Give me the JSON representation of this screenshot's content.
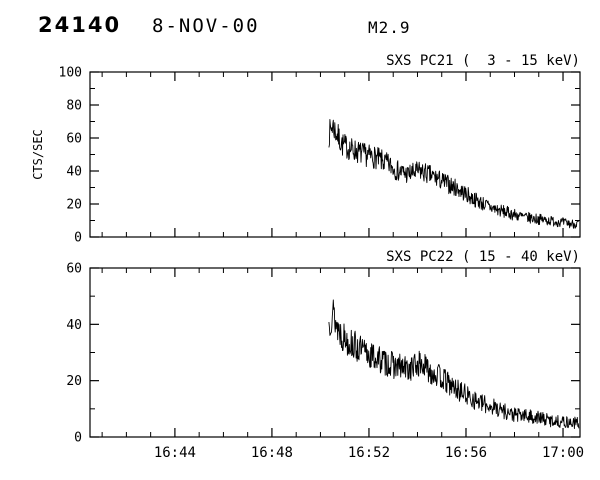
{
  "header": {
    "flare_number": "24140",
    "date": "8-NOV-00",
    "goes_class": "M2.9"
  },
  "chart_data": [
    {
      "type": "line",
      "panel_id": "pc21-panel",
      "title": "SXS PC21 (  3 - 15 keV)",
      "xlabel": "",
      "ylabel": "CTS/SEC",
      "ylim": [
        0,
        100
      ],
      "yticks": [
        0,
        20,
        40,
        60,
        80,
        100
      ],
      "y_minor": 10,
      "xlim_minutes_after_1600": [
        40.5,
        60.7
      ],
      "xticks": [
        {
          "t": 44,
          "label": "16:44"
        },
        {
          "t": 48,
          "label": "16:48"
        },
        {
          "t": 52,
          "label": "16:52"
        },
        {
          "t": 56,
          "label": "16:56"
        },
        {
          "t": 60,
          "label": "17:00"
        }
      ],
      "x_minor": 1,
      "grid": false,
      "legend": "none",
      "series": [
        {
          "name": "SXS PC21 3-15 keV counts",
          "seed": 7,
          "noise_k": 1.0,
          "step": 0.02,
          "points": [
            [
              50.35,
              62
            ],
            [
              50.5,
              68
            ],
            [
              50.65,
              63
            ],
            [
              50.9,
              56
            ],
            [
              51.3,
              53
            ],
            [
              51.8,
              50
            ],
            [
              52.3,
              48
            ],
            [
              52.8,
              44
            ],
            [
              53.2,
              40
            ],
            [
              53.6,
              38
            ],
            [
              54.1,
              40
            ],
            [
              54.6,
              37
            ],
            [
              55.0,
              34
            ],
            [
              55.4,
              31
            ],
            [
              55.8,
              28
            ],
            [
              56.2,
              24
            ],
            [
              56.6,
              21
            ],
            [
              57.0,
              18
            ],
            [
              57.4,
              16
            ],
            [
              57.9,
              14
            ],
            [
              58.4,
              12
            ],
            [
              58.9,
              11
            ],
            [
              59.4,
              10
            ],
            [
              59.9,
              9
            ],
            [
              60.3,
              8
            ],
            [
              60.65,
              8
            ]
          ]
        }
      ]
    },
    {
      "type": "line",
      "panel_id": "pc22-panel",
      "title": "SXS PC22 ( 15 - 40 keV)",
      "xlabel": "",
      "ylabel": "",
      "ylim": [
        0,
        60
      ],
      "yticks": [
        0,
        20,
        40,
        60
      ],
      "y_minor": 10,
      "xlim_minutes_after_1600": [
        40.5,
        60.7
      ],
      "xticks": [
        {
          "t": 44,
          "label": "16:44"
        },
        {
          "t": 48,
          "label": "16:48"
        },
        {
          "t": 52,
          "label": "16:52"
        },
        {
          "t": 56,
          "label": "16:56"
        },
        {
          "t": 60,
          "label": "17:00"
        }
      ],
      "x_minor": 1,
      "grid": false,
      "legend": "none",
      "series": [
        {
          "name": "SXS PC22 15-40 keV counts",
          "seed": 13,
          "noise_k": 0.95,
          "step": 0.02,
          "points": [
            [
              50.35,
              40
            ],
            [
              50.5,
              45
            ],
            [
              50.65,
              40
            ],
            [
              50.9,
              36
            ],
            [
              51.3,
              33
            ],
            [
              51.8,
              30
            ],
            [
              52.3,
              28
            ],
            [
              52.8,
              26
            ],
            [
              53.2,
              25
            ],
            [
              53.6,
              24
            ],
            [
              54.1,
              26
            ],
            [
              54.6,
              23
            ],
            [
              55.0,
              21
            ],
            [
              55.4,
              18
            ],
            [
              55.8,
              16
            ],
            [
              56.2,
              14
            ],
            [
              56.6,
              12
            ],
            [
              57.0,
              11
            ],
            [
              57.4,
              10
            ],
            [
              57.9,
              8
            ],
            [
              58.4,
              7.5
            ],
            [
              58.9,
              7
            ],
            [
              59.4,
              6
            ],
            [
              59.9,
              5.5
            ],
            [
              60.3,
              5
            ],
            [
              60.65,
              5
            ]
          ]
        }
      ]
    }
  ]
}
